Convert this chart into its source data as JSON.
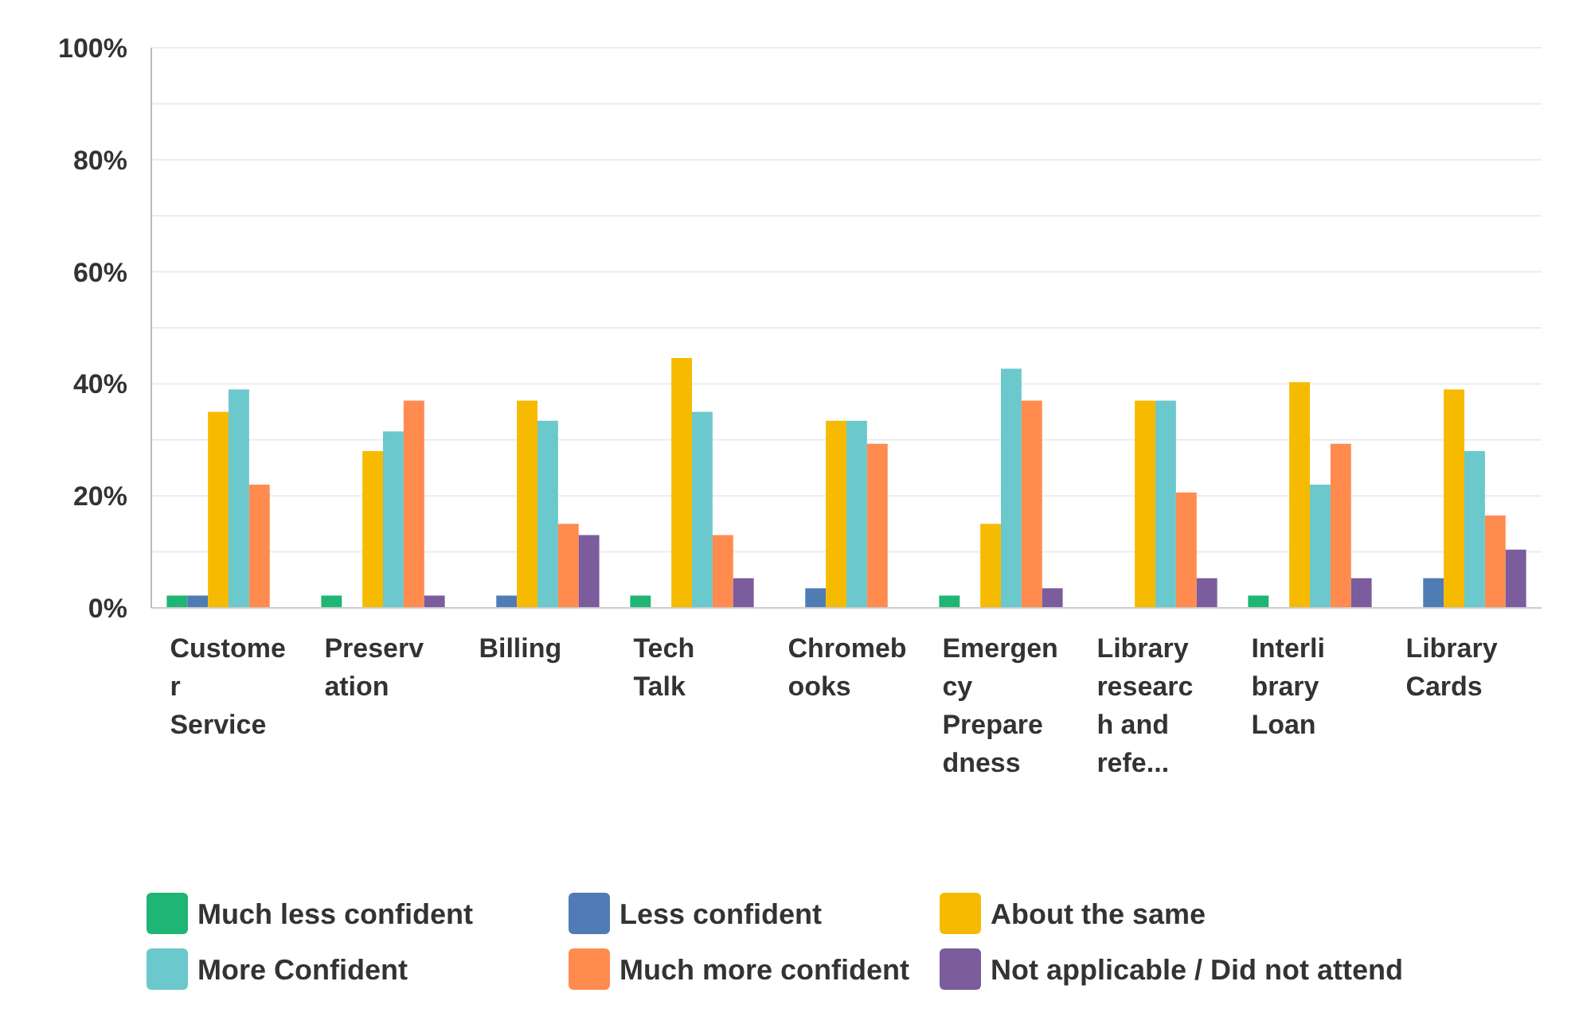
{
  "chart_data": {
    "type": "bar",
    "categories": [
      "Customer Service",
      "Preservation",
      "Billing",
      "Tech Talk",
      "Chromebooks",
      "Emergency Preparedness",
      "Library research and refe...",
      "Interlibrary Loan",
      "Library Cards"
    ],
    "series": [
      {
        "name": "Much less confident",
        "color": "#1fb574",
        "values": [
          2.2,
          2.2,
          0,
          2.2,
          0,
          2.2,
          0,
          2.2,
          0
        ]
      },
      {
        "name": "Less confident",
        "color": "#507cb6",
        "values": [
          2.2,
          0,
          2.2,
          0,
          3.5,
          0,
          0,
          0,
          5.3
        ]
      },
      {
        "name": "About the same",
        "color": "#f6bb00",
        "values": [
          35,
          28,
          37,
          44.6,
          33.4,
          15,
          37,
          40.3,
          39
        ]
      },
      {
        "name": "More Confident",
        "color": "#6bc8cd",
        "values": [
          39,
          31.5,
          33.4,
          35,
          33.4,
          42.7,
          37,
          22,
          28
        ]
      },
      {
        "name": "Much more confident",
        "color": "#ff8b4f",
        "values": [
          22,
          37,
          15,
          13,
          29.3,
          37,
          20.6,
          29.3,
          16.5
        ]
      },
      {
        "name": "Not applicable / Did not attend",
        "color": "#7b5c9c",
        "values": [
          0,
          2.2,
          13,
          5.3,
          0,
          3.5,
          5.3,
          5.3,
          10.4
        ]
      }
    ],
    "ylim": [
      0,
      100
    ],
    "yticks": [
      {
        "value": 0,
        "label": "0%"
      },
      {
        "value": 10,
        "label": null
      },
      {
        "value": 20,
        "label": "20%"
      },
      {
        "value": 30,
        "label": null
      },
      {
        "value": 40,
        "label": "40%"
      },
      {
        "value": 50,
        "label": null
      },
      {
        "value": 60,
        "label": "60%"
      },
      {
        "value": 70,
        "label": null
      },
      {
        "value": 80,
        "label": "80%"
      },
      {
        "value": 90,
        "label": null
      },
      {
        "value": 100,
        "label": "100%"
      }
    ],
    "grid": true,
    "legend": "bottom"
  }
}
